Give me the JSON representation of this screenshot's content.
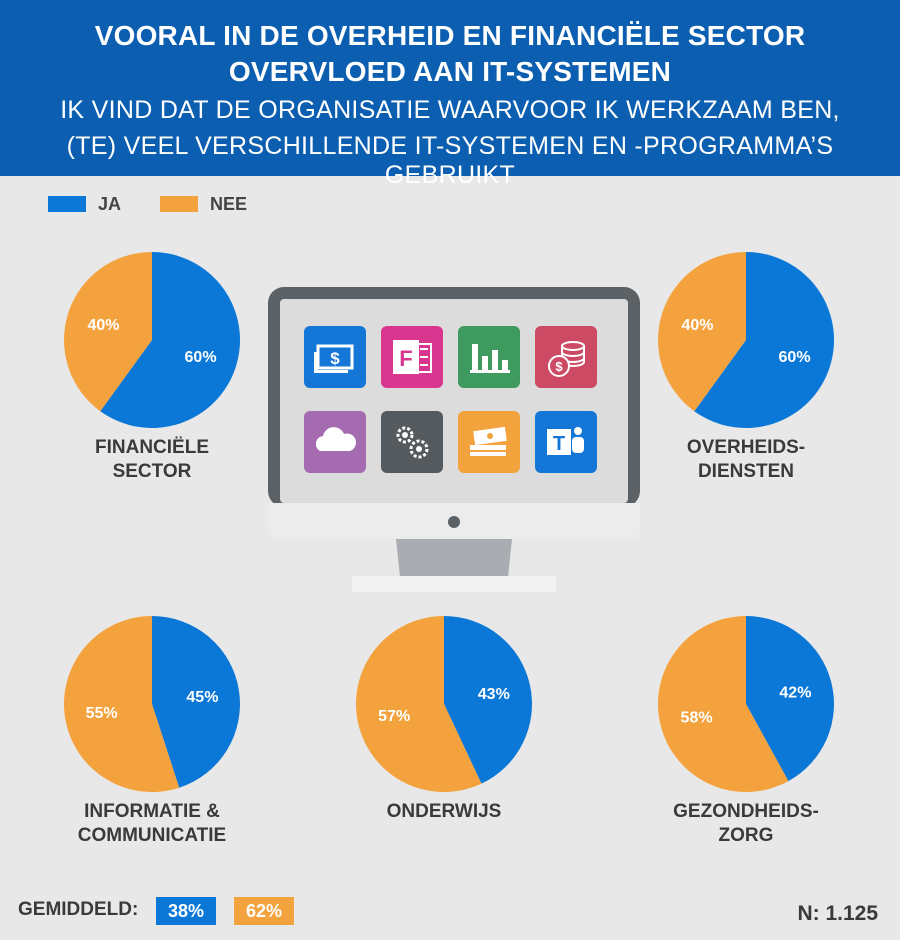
{
  "header": {
    "title_line1": "VOORAL IN DE OVERHEID EN FINANCIËLE SECTOR",
    "title_line2": "OVERVLOED AAN IT-SYSTEMEN",
    "subtitle_line1": "IK VIND DAT DE ORGANISATIE WAARVOOR IK WERKZAAM BEN,",
    "subtitle_line2": "(TE) VEEL VERSCHILLENDE IT-SYSTEMEN EN -PROGRAMMA’S GEBRUIKT"
  },
  "legend": {
    "ja": "JA",
    "nee": "NEE"
  },
  "colors": {
    "ja": "#0b78d8",
    "nee": "#f4a23d",
    "header": "#0c5fb0"
  },
  "chart_data": [
    {
      "type": "pie",
      "category_line1": "FINANCIËLE",
      "category_line2": "SECTOR",
      "slices": [
        {
          "name": "JA",
          "value": 60,
          "label": "60%"
        },
        {
          "name": "NEE",
          "value": 40,
          "label": "40%"
        }
      ]
    },
    {
      "type": "pie",
      "category_line1": "OVERHEIDS-",
      "category_line2": "DIENSTEN",
      "slices": [
        {
          "name": "JA",
          "value": 60,
          "label": "60%"
        },
        {
          "name": "NEE",
          "value": 40,
          "label": "40%"
        }
      ]
    },
    {
      "type": "pie",
      "category_line1": "INFORMATIE &",
      "category_line2": "COMMUNICATIE",
      "slices": [
        {
          "name": "JA",
          "value": 45,
          "label": "45%"
        },
        {
          "name": "NEE",
          "value": 55,
          "label": "55%"
        }
      ]
    },
    {
      "type": "pie",
      "category_line1": "ONDERWIJS",
      "category_line2": "",
      "slices": [
        {
          "name": "JA",
          "value": 43,
          "label": "43%"
        },
        {
          "name": "NEE",
          "value": 57,
          "label": "57%"
        }
      ]
    },
    {
      "type": "pie",
      "category_line1": "GEZONDHEIDS-",
      "category_line2": "ZORG",
      "slices": [
        {
          "name": "JA",
          "value": 42,
          "label": "42%"
        },
        {
          "name": "NEE",
          "value": 58,
          "label": "58%"
        }
      ]
    }
  ],
  "footer": {
    "average_label": "GEMIDDELD:",
    "average_ja": "38%",
    "average_nee": "62%",
    "sample_size": "N: 1.125"
  },
  "monitor_icons": [
    "dollar-bill-icon",
    "forms-app-icon",
    "bar-chart-icon",
    "coins-icon",
    "cloud-icon",
    "gears-icon",
    "money-stack-icon",
    "teams-icon"
  ]
}
